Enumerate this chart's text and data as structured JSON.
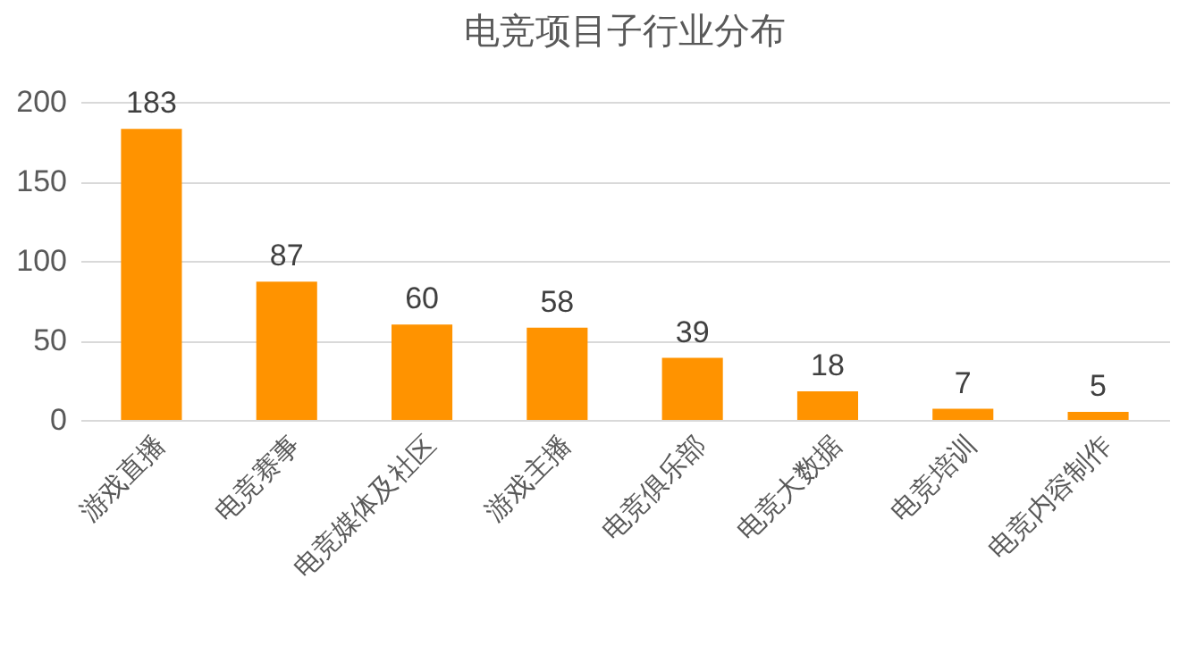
{
  "chart_data": {
    "type": "bar",
    "title": "电竞项目子行业分布",
    "categories": [
      "游戏直播",
      "电竞赛事",
      "电竞媒体及社区",
      "游戏主播",
      "电竞俱乐部",
      "电竞大数据",
      "电竞培训",
      "电竞内容制作"
    ],
    "values": [
      183,
      87,
      60,
      58,
      39,
      18,
      7,
      5
    ],
    "color": "#ff9300",
    "ylim": [
      0,
      200
    ],
    "yticks": [
      0,
      50,
      100,
      150,
      200
    ],
    "grid": "y",
    "data_labels": true
  }
}
